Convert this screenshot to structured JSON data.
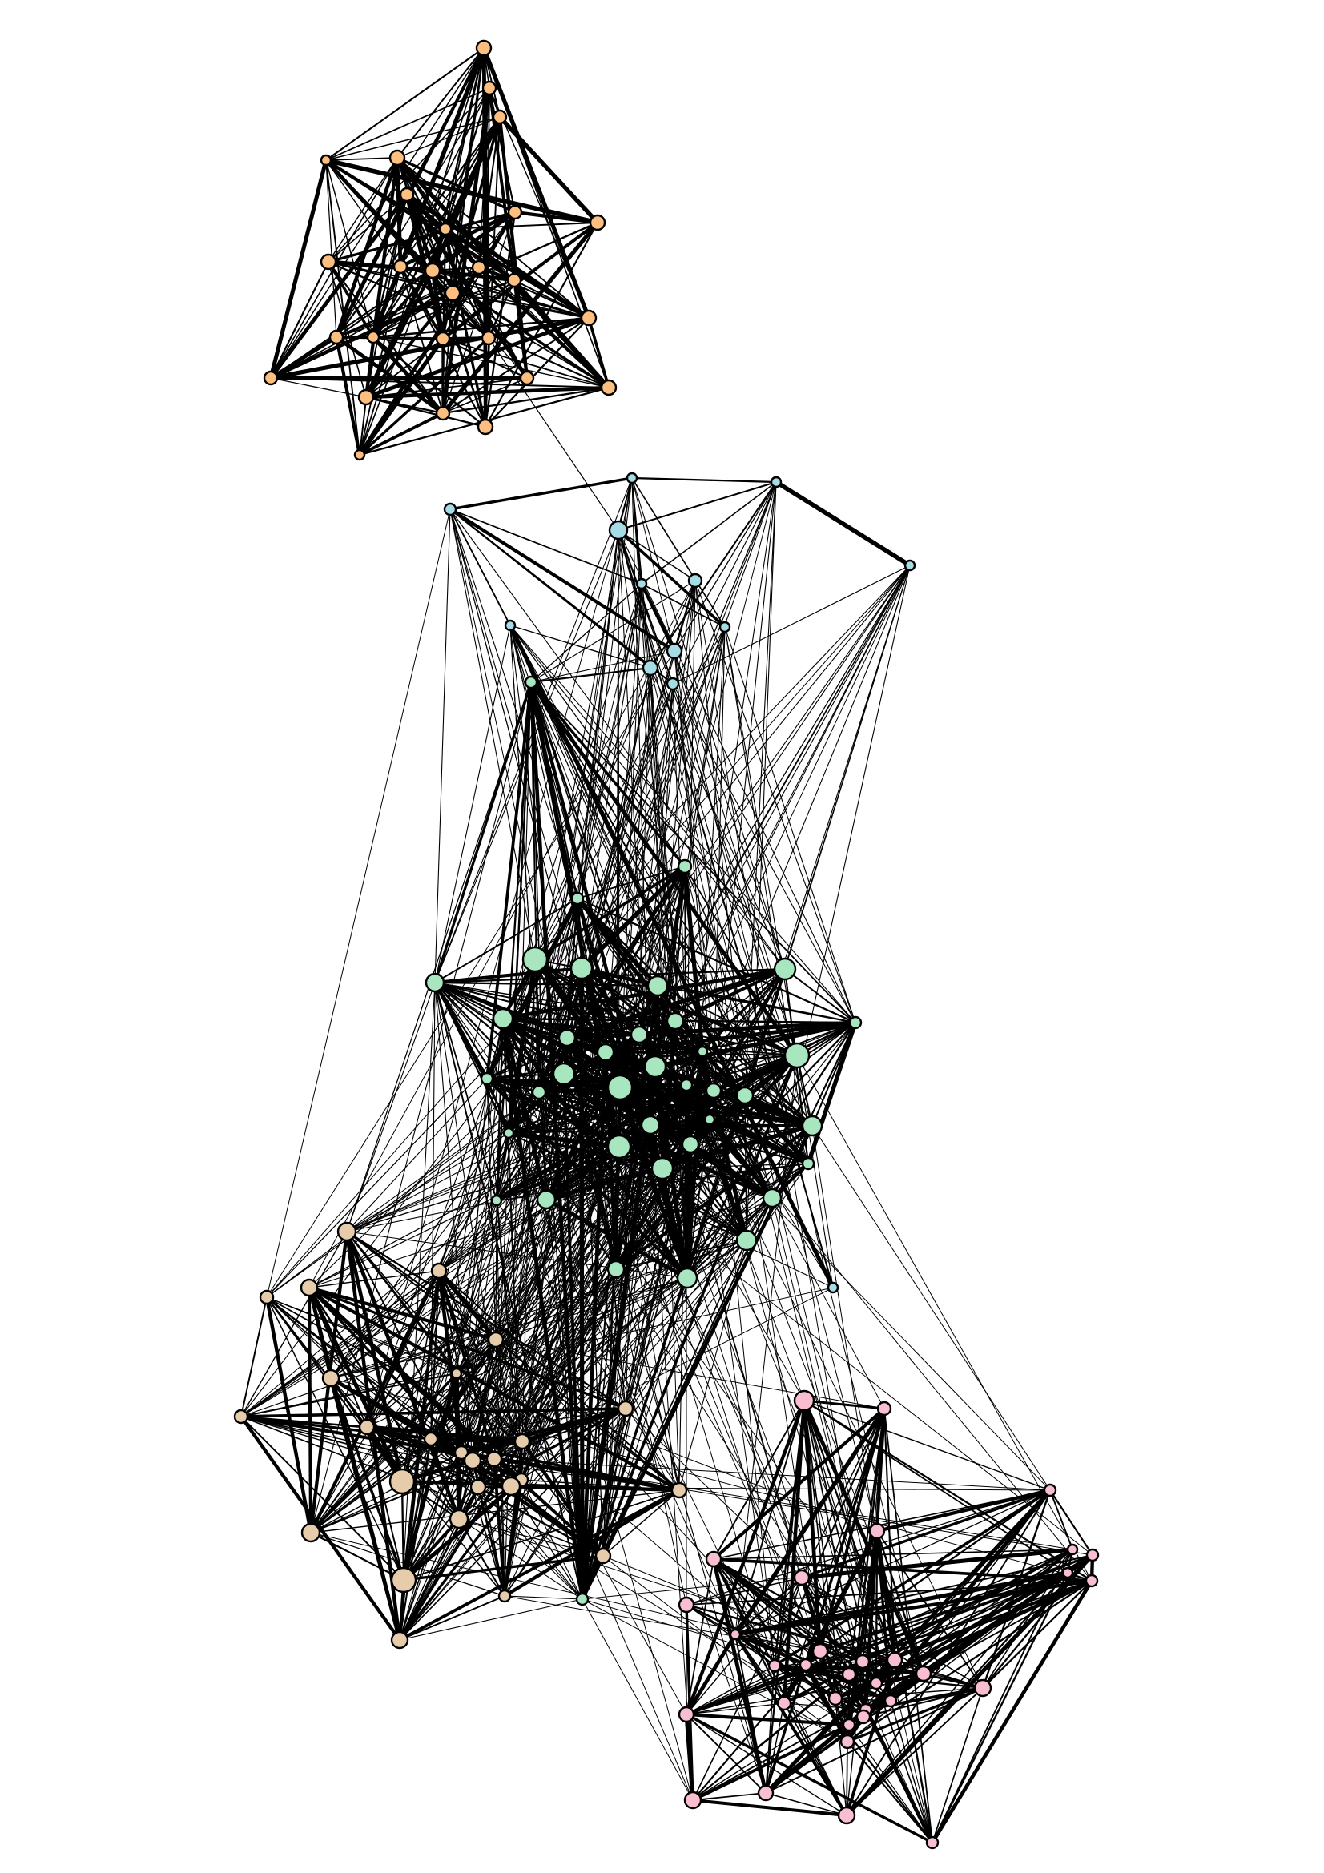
{
  "diagram": {
    "type": "network-graph",
    "clusters": [
      {
        "id": "orange",
        "color": "#fdbf7f"
      },
      {
        "id": "blue",
        "color": "#a6dce6"
      },
      {
        "id": "green",
        "color": "#a7e6bf"
      },
      {
        "id": "tan",
        "color": "#e6ccab"
      },
      {
        "id": "pink",
        "color": "#f9bfd0"
      }
    ],
    "edge_color": "#000000"
  }
}
